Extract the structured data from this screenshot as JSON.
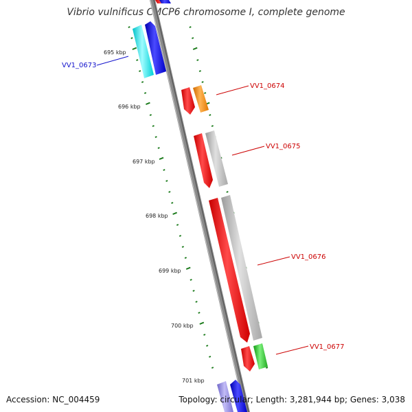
{
  "title": "Vibrio vulnificus CMCP6 chromosome I, complete genome",
  "accession_text": "Accession: NC_004459",
  "info_text": "Topology: circular; Length: 3,281,944 bp; Genes: 3,038",
  "kbp_labels": [
    "695 kbp",
    "696 kbp",
    "697 kbp",
    "698 kbp",
    "699 kbp",
    "700 kbp",
    "701 kbp"
  ],
  "gene_labels": [
    {
      "name": "VV1_0673",
      "color": "#1111cc"
    },
    {
      "name": "VV1_0674",
      "color": "#cc0000"
    },
    {
      "name": "VV1_0675",
      "color": "#cc0000"
    },
    {
      "name": "VV1_0676",
      "color": "#cc0000"
    },
    {
      "name": "VV1_0677",
      "color": "#cc0000"
    }
  ],
  "colors": {
    "red": "#ee1111",
    "blue": "#1a1aee",
    "cyan": "#22e8ee",
    "orange": "#f58a10",
    "gray": "#b4b4b4",
    "green": "#33c433",
    "lavender": "#8f86e0",
    "backbone": "#888888",
    "ticks": "#1a7a1a"
  }
}
